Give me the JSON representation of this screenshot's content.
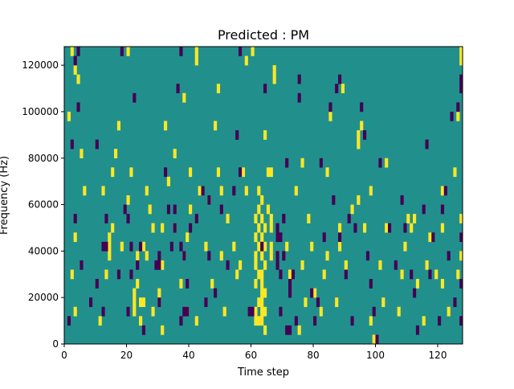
{
  "chart_data": {
    "type": "heatmap",
    "title": "Predicted : PM",
    "xlabel": "Time step",
    "ylabel": "Frequency (Hz)",
    "xlim": [
      0,
      128
    ],
    "ylim": [
      0,
      128000
    ],
    "x_ticks": [
      0,
      20,
      40,
      60,
      80,
      100,
      120
    ],
    "y_ticks": [
      0,
      20000,
      40000,
      60000,
      80000,
      100000,
      120000
    ],
    "x_tick_labels": [
      "0",
      "20",
      "40",
      "60",
      "80",
      "100",
      "120"
    ],
    "y_tick_labels": [
      "0",
      "20000",
      "40000",
      "60000",
      "80000",
      "100000",
      "120000"
    ],
    "grid": false,
    "colors": {
      "background": "#21908d",
      "high": "#fde725",
      "low": "#440154"
    },
    "cell_size": {
      "time_steps": 1,
      "frequency_hz": 4000
    },
    "high_cells": [
      [
        2,
        124000
      ],
      [
        3,
        116000
      ],
      [
        4,
        112000
      ],
      [
        1,
        96000
      ],
      [
        5,
        80000
      ],
      [
        6,
        64000
      ],
      [
        3,
        44000
      ],
      [
        2,
        28000
      ],
      [
        3,
        12000
      ],
      [
        11,
        8000
      ],
      [
        13,
        28000
      ],
      [
        14,
        36000
      ],
      [
        14,
        40000
      ],
      [
        14,
        44000
      ],
      [
        15,
        48000
      ],
      [
        12,
        64000
      ],
      [
        15,
        72000
      ],
      [
        16,
        80000
      ],
      [
        17,
        92000
      ],
      [
        18,
        40000
      ],
      [
        20,
        60000
      ],
      [
        21,
        72000
      ],
      [
        20,
        124000
      ],
      [
        22,
        12000
      ],
      [
        22,
        16000
      ],
      [
        22,
        20000
      ],
      [
        23,
        24000
      ],
      [
        23,
        36000
      ],
      [
        24,
        8000
      ],
      [
        24,
        16000
      ],
      [
        25,
        16000
      ],
      [
        25,
        40000
      ],
      [
        26,
        36000
      ],
      [
        26,
        64000
      ],
      [
        28,
        12000
      ],
      [
        28,
        48000
      ],
      [
        27,
        56000
      ],
      [
        30,
        16000
      ],
      [
        30,
        20000
      ],
      [
        31,
        4000
      ],
      [
        31,
        32000
      ],
      [
        31,
        48000
      ],
      [
        32,
        92000
      ],
      [
        33,
        68000
      ],
      [
        35,
        80000
      ],
      [
        35,
        48000
      ],
      [
        37,
        24000
      ],
      [
        38,
        36000
      ],
      [
        38,
        104000
      ],
      [
        39,
        12000
      ],
      [
        39,
        44000
      ],
      [
        40,
        56000
      ],
      [
        40,
        72000
      ],
      [
        42,
        8000
      ],
      [
        42,
        120000
      ],
      [
        42,
        124000
      ],
      [
        43,
        64000
      ],
      [
        45,
        40000
      ],
      [
        46,
        60000
      ],
      [
        47,
        24000
      ],
      [
        48,
        92000
      ],
      [
        49,
        72000
      ],
      [
        49,
        108000
      ],
      [
        50,
        64000
      ],
      [
        50,
        36000
      ],
      [
        51,
        12000
      ],
      [
        52,
        52000
      ],
      [
        54,
        40000
      ],
      [
        55,
        28000
      ],
      [
        58,
        64000
      ],
      [
        57,
        72000
      ],
      [
        58,
        120000
      ],
      [
        60,
        124000
      ],
      [
        56,
        32000
      ],
      [
        62,
        8000
      ],
      [
        62,
        16000
      ],
      [
        62,
        28000
      ],
      [
        62,
        40000
      ],
      [
        62,
        48000
      ],
      [
        62,
        56000
      ],
      [
        62,
        64000
      ],
      [
        63,
        36000
      ],
      [
        63,
        44000
      ],
      [
        63,
        52000
      ],
      [
        63,
        60000
      ],
      [
        64,
        4000
      ],
      [
        64,
        12000
      ],
      [
        64,
        20000
      ],
      [
        64,
        32000
      ],
      [
        64,
        40000
      ],
      [
        64,
        48000
      ],
      [
        65,
        56000
      ],
      [
        65,
        72000
      ],
      [
        64,
        88000
      ],
      [
        61,
        8000
      ],
      [
        61,
        12000
      ],
      [
        61,
        24000
      ],
      [
        61,
        32000
      ],
      [
        61,
        36000
      ],
      [
        61,
        44000
      ],
      [
        61,
        52000
      ],
      [
        63,
        8000
      ],
      [
        63,
        12000
      ],
      [
        63,
        16000
      ],
      [
        63,
        20000
      ],
      [
        63,
        24000
      ],
      [
        63,
        28000
      ],
      [
        66,
        36000
      ],
      [
        66,
        40000
      ],
      [
        66,
        48000
      ],
      [
        66,
        52000
      ],
      [
        66,
        72000
      ],
      [
        67,
        112000
      ],
      [
        67,
        116000
      ],
      [
        71,
        40000
      ],
      [
        72,
        28000
      ],
      [
        74,
        64000
      ],
      [
        75,
        4000
      ],
      [
        76,
        76000
      ],
      [
        77,
        16000
      ],
      [
        76,
        32000
      ],
      [
        78,
        52000
      ],
      [
        79,
        40000
      ],
      [
        80,
        20000
      ],
      [
        82,
        12000
      ],
      [
        83,
        28000
      ],
      [
        84,
        36000
      ],
      [
        84,
        72000
      ],
      [
        85,
        96000
      ],
      [
        87,
        16000
      ],
      [
        88,
        40000
      ],
      [
        88,
        48000
      ],
      [
        89,
        108000
      ],
      [
        90,
        32000
      ],
      [
        92,
        56000
      ],
      [
        94,
        60000
      ],
      [
        94,
        84000
      ],
      [
        94,
        88000
      ],
      [
        95,
        92000
      ],
      [
        96,
        48000
      ],
      [
        98,
        8000
      ],
      [
        98,
        64000
      ],
      [
        99,
        0
      ],
      [
        100,
        0
      ],
      [
        101,
        32000
      ],
      [
        102,
        16000
      ],
      [
        103,
        48000
      ],
      [
        103,
        76000
      ],
      [
        107,
        12000
      ],
      [
        108,
        28000
      ],
      [
        109,
        40000
      ],
      [
        110,
        52000
      ],
      [
        111,
        48000
      ],
      [
        112,
        52000
      ],
      [
        113,
        24000
      ],
      [
        115,
        8000
      ],
      [
        116,
        32000
      ],
      [
        117,
        44000
      ],
      [
        119,
        28000
      ],
      [
        121,
        24000
      ],
      [
        121,
        48000
      ],
      [
        121,
        64000
      ],
      [
        123,
        12000
      ],
      [
        125,
        72000
      ],
      [
        126,
        96000
      ],
      [
        126,
        28000
      ],
      [
        127,
        36000
      ],
      [
        127,
        44000
      ],
      [
        128,
        52000
      ],
      [
        128,
        120000
      ],
      [
        128,
        124000
      ]
    ],
    "low_cells": [
      [
        1,
        8000
      ],
      [
        2,
        84000
      ],
      [
        3,
        120000
      ],
      [
        3,
        52000
      ],
      [
        4,
        100000
      ],
      [
        5,
        32000
      ],
      [
        4,
        124000
      ],
      [
        8,
        16000
      ],
      [
        10,
        24000
      ],
      [
        10,
        84000
      ],
      [
        12,
        12000
      ],
      [
        12,
        40000
      ],
      [
        13,
        40000
      ],
      [
        13,
        52000
      ],
      [
        17,
        28000
      ],
      [
        18,
        124000
      ],
      [
        19,
        56000
      ],
      [
        20,
        12000
      ],
      [
        20,
        52000
      ],
      [
        21,
        28000
      ],
      [
        21,
        40000
      ],
      [
        22,
        104000
      ],
      [
        23,
        32000
      ],
      [
        24,
        40000
      ],
      [
        25,
        4000
      ],
      [
        29,
        32000
      ],
      [
        30,
        16000
      ],
      [
        30,
        32000
      ],
      [
        30,
        36000
      ],
      [
        32,
        72000
      ],
      [
        33,
        56000
      ],
      [
        34,
        40000
      ],
      [
        35,
        48000
      ],
      [
        35,
        56000
      ],
      [
        36,
        108000
      ],
      [
        37,
        124000
      ],
      [
        37,
        40000
      ],
      [
        37,
        8000
      ],
      [
        38,
        12000
      ],
      [
        38,
        36000
      ],
      [
        39,
        12000
      ],
      [
        39,
        24000
      ],
      [
        40,
        48000
      ],
      [
        42,
        52000
      ],
      [
        44,
        64000
      ],
      [
        45,
        16000
      ],
      [
        46,
        60000
      ],
      [
        46,
        36000
      ],
      [
        48,
        20000
      ],
      [
        50,
        56000
      ],
      [
        52,
        32000
      ],
      [
        54,
        64000
      ],
      [
        55,
        88000
      ],
      [
        56,
        72000
      ],
      [
        56,
        124000
      ],
      [
        59,
        12000
      ],
      [
        60,
        12000
      ],
      [
        63,
        40000
      ],
      [
        64,
        108000
      ],
      [
        68,
        32000
      ],
      [
        68,
        36000
      ],
      [
        68,
        44000
      ],
      [
        68,
        48000
      ],
      [
        69,
        12000
      ],
      [
        69,
        28000
      ],
      [
        69,
        44000
      ],
      [
        70,
        52000
      ],
      [
        70,
        36000
      ],
      [
        71,
        76000
      ],
      [
        71,
        4000
      ],
      [
        72,
        4000
      ],
      [
        72,
        20000
      ],
      [
        72,
        24000
      ],
      [
        73,
        28000
      ],
      [
        74,
        8000
      ],
      [
        75,
        104000
      ],
      [
        75,
        112000
      ],
      [
        79,
        20000
      ],
      [
        80,
        8000
      ],
      [
        81,
        16000
      ],
      [
        82,
        76000
      ],
      [
        83,
        44000
      ],
      [
        85,
        100000
      ],
      [
        86,
        60000
      ],
      [
        87,
        108000
      ],
      [
        88,
        44000
      ],
      [
        88,
        112000
      ],
      [
        90,
        28000
      ],
      [
        91,
        52000
      ],
      [
        92,
        8000
      ],
      [
        93,
        48000
      ],
      [
        95,
        100000
      ],
      [
        96,
        88000
      ],
      [
        97,
        36000
      ],
      [
        98,
        24000
      ],
      [
        99,
        12000
      ],
      [
        100,
        0
      ],
      [
        101,
        76000
      ],
      [
        104,
        48000
      ],
      [
        106,
        32000
      ],
      [
        108,
        60000
      ],
      [
        109,
        48000
      ],
      [
        111,
        28000
      ],
      [
        112,
        20000
      ],
      [
        113,
        4000
      ],
      [
        115,
        56000
      ],
      [
        116,
        84000
      ],
      [
        117,
        28000
      ],
      [
        118,
        44000
      ],
      [
        120,
        8000
      ],
      [
        121,
        56000
      ],
      [
        122,
        64000
      ],
      [
        123,
        36000
      ],
      [
        124,
        96000
      ],
      [
        125,
        16000
      ],
      [
        126,
        100000
      ],
      [
        127,
        44000
      ],
      [
        127,
        112000
      ],
      [
        128,
        108000
      ],
      [
        128,
        24000
      ],
      [
        127,
        8000
      ]
    ]
  }
}
